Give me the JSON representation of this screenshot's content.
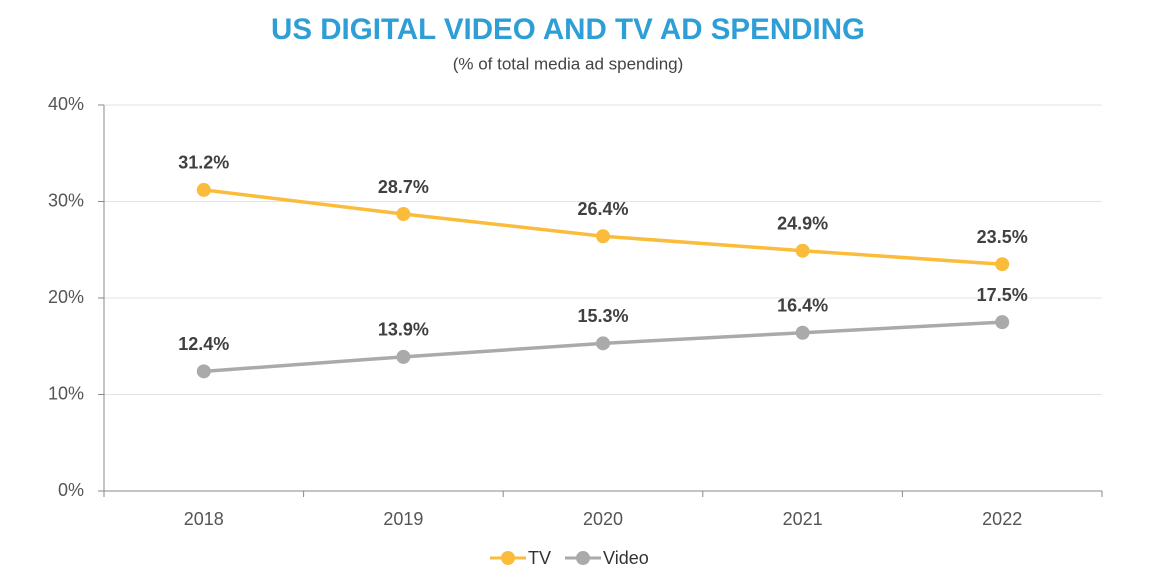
{
  "chart_data": {
    "type": "line",
    "title": "US DIGITAL VIDEO AND TV AD SPENDING",
    "subtitle": "(% of total media ad spending)",
    "categories": [
      "2018",
      "2019",
      "2020",
      "2021",
      "2022"
    ],
    "series": [
      {
        "name": "TV",
        "color": "#fbbc3c",
        "values": [
          31.2,
          28.7,
          26.4,
          24.9,
          23.5
        ],
        "value_labels": [
          "31.2%",
          "28.7%",
          "26.4%",
          "24.9%",
          "23.5%"
        ]
      },
      {
        "name": "Video",
        "color": "#aaaaaa",
        "values": [
          12.4,
          13.9,
          15.3,
          16.4,
          17.5
        ],
        "value_labels": [
          "12.4%",
          "13.9%",
          "15.3%",
          "16.4%",
          "17.5%"
        ]
      }
    ],
    "ylim": [
      0,
      40
    ],
    "yticks": [
      {
        "value": 0,
        "label": "0%"
      },
      {
        "value": 10,
        "label": "10%"
      },
      {
        "value": 20,
        "label": "20%"
      },
      {
        "value": 30,
        "label": "30%"
      },
      {
        "value": 40,
        "label": "40%"
      }
    ],
    "grid": true
  }
}
